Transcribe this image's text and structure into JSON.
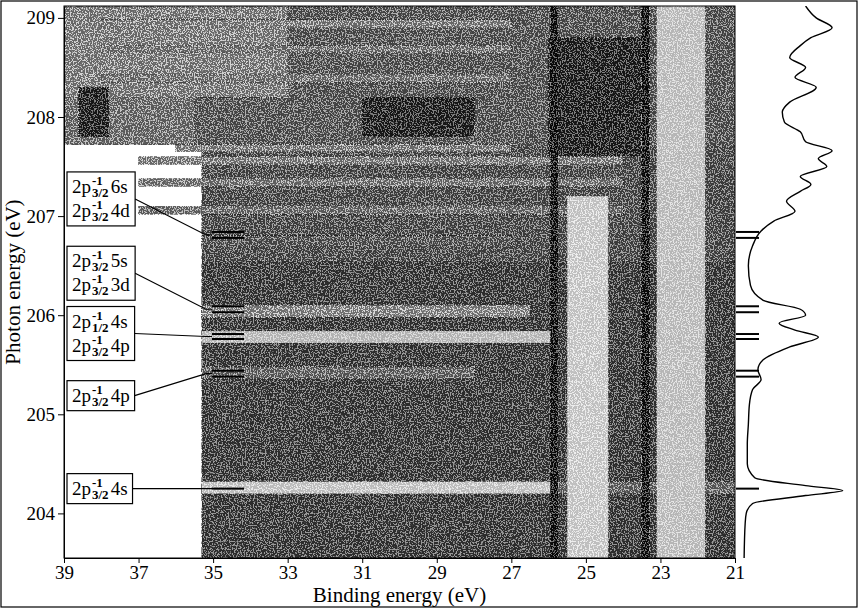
{
  "chart_data": {
    "type": "heatmap",
    "xlabel": "Binding energy (eV)",
    "ylabel": "Photon energy (eV)",
    "xlim": [
      39,
      21
    ],
    "xticks": [
      39,
      37,
      35,
      33,
      31,
      29,
      27,
      25,
      23,
      21
    ],
    "ylim": [
      203.55,
      209.12
    ],
    "yticks": [
      204,
      205,
      206,
      207,
      208,
      209
    ],
    "cells": [
      {
        "x": [
          35.3,
          21
        ],
        "y": [
          203.55,
          206.55
        ],
        "value": 0.3
      },
      {
        "x": [
          35.3,
          21
        ],
        "y": [
          206.55,
          207.72
        ],
        "value": 0.4
      },
      {
        "x": [
          39,
          21
        ],
        "y": [
          207.72,
          209.12
        ],
        "value": 0.45
      },
      {
        "x": [
          39,
          33
        ],
        "y": [
          208.2,
          209.12
        ],
        "value": 0.7
      },
      {
        "x": [
          39,
          35.5
        ],
        "y": [
          207.72,
          208.2
        ],
        "value": 0.6
      },
      {
        "x": [
          38.6,
          37.8
        ],
        "y": [
          207.8,
          208.3
        ],
        "value": 0.15
      },
      {
        "x": [
          31,
          28
        ],
        "y": [
          207.8,
          208.2
        ],
        "value": 0.15
      },
      {
        "x": [
          26,
          23.5
        ],
        "y": [
          207.6,
          208.8
        ],
        "value": 0.15
      },
      {
        "x": [
          35.3,
          25.9
        ],
        "y": [
          204.2,
          204.32
        ],
        "value": 0.9
      },
      {
        "x": [
          25.9,
          21
        ],
        "y": [
          204.2,
          204.32
        ],
        "value": 0.55
      },
      {
        "x": [
          35.3,
          28
        ],
        "y": [
          205.36,
          205.48
        ],
        "value": 0.55
      },
      {
        "x": [
          35.3,
          25.8
        ],
        "y": [
          205.72,
          205.84
        ],
        "value": 0.85
      },
      {
        "x": [
          35.3,
          26.5
        ],
        "y": [
          205.98,
          206.1
        ],
        "value": 0.75
      },
      {
        "x": [
          35.3,
          27
        ],
        "y": [
          206.7,
          206.8
        ],
        "value": 0.45
      },
      {
        "x": [
          37,
          24
        ],
        "y": [
          207.02,
          207.1
        ],
        "value": 0.6
      },
      {
        "x": [
          37,
          24
        ],
        "y": [
          207.3,
          207.38
        ],
        "value": 0.65
      },
      {
        "x": [
          37,
          24
        ],
        "y": [
          207.52,
          207.6
        ],
        "value": 0.7
      },
      {
        "x": [
          36,
          27
        ],
        "y": [
          207.65,
          207.72
        ],
        "value": 0.7
      },
      {
        "x": [
          38,
          27
        ],
        "y": [
          208.35,
          208.43
        ],
        "value": 0.65
      },
      {
        "x": [
          38,
          27
        ],
        "y": [
          208.65,
          208.72
        ],
        "value": 0.65
      },
      {
        "x": [
          38,
          27
        ],
        "y": [
          208.9,
          208.98
        ],
        "value": 0.7
      },
      {
        "x": [
          25.95,
          25.75
        ],
        "y": [
          203.55,
          209.12
        ],
        "value": 0.05
      },
      {
        "x": [
          25.5,
          24.4
        ],
        "y": [
          203.55,
          207.2
        ],
        "value": 0.92
      },
      {
        "x": [
          23.5,
          23.3
        ],
        "y": [
          203.55,
          209.12
        ],
        "value": 0.05
      },
      {
        "x": [
          23.1,
          21.8
        ],
        "y": [
          203.55,
          209.12
        ],
        "value": 0.88
      }
    ],
    "spectrum": {
      "xlim": [
        0,
        1
      ],
      "y": [
        203.55,
        203.9,
        204.0,
        204.1,
        204.18,
        204.23,
        204.28,
        204.36,
        204.5,
        204.7,
        204.9,
        205.1,
        205.25,
        205.35,
        205.45,
        205.55,
        205.68,
        205.78,
        205.85,
        205.92,
        206.0,
        206.06,
        206.15,
        206.3,
        206.5,
        206.7,
        206.85,
        206.95,
        207.05,
        207.15,
        207.25,
        207.32,
        207.4,
        207.5,
        207.58,
        207.66,
        207.75,
        207.85,
        207.95,
        208.05,
        208.15,
        208.3,
        208.4,
        208.5,
        208.6,
        208.72,
        208.8,
        208.9,
        209.0,
        209.12
      ],
      "values": [
        0.02,
        0.03,
        0.04,
        0.1,
        0.6,
        0.95,
        0.6,
        0.12,
        0.05,
        0.05,
        0.06,
        0.07,
        0.1,
        0.18,
        0.15,
        0.2,
        0.45,
        0.72,
        0.5,
        0.35,
        0.6,
        0.55,
        0.2,
        0.08,
        0.06,
        0.1,
        0.18,
        0.3,
        0.5,
        0.42,
        0.55,
        0.65,
        0.55,
        0.8,
        0.72,
        0.85,
        0.6,
        0.55,
        0.4,
        0.38,
        0.45,
        0.7,
        0.5,
        0.6,
        0.45,
        0.55,
        0.65,
        0.85,
        0.7,
        0.6
      ]
    },
    "resonances": [
      {
        "y": [
          206.84,
          206.78
        ],
        "labels": [
          {
            "hole": "2p",
            "power": "-1",
            "j": "3/2",
            "orbital": "6s"
          },
          {
            "hole": "2p",
            "power": "-1",
            "j": "3/2",
            "orbital": "4d"
          }
        ]
      },
      {
        "y": [
          206.09,
          206.03
        ],
        "labels": [
          {
            "hole": "2p",
            "power": "-1",
            "j": "3/2",
            "orbital": "5s"
          },
          {
            "hole": "2p",
            "power": "-1",
            "j": "3/2",
            "orbital": "3d"
          }
        ]
      },
      {
        "y": [
          205.81,
          205.76
        ],
        "labels": [
          {
            "hole": "2p",
            "power": "-1",
            "j": "1/2",
            "orbital": "4s"
          },
          {
            "hole": "2p",
            "power": "-1",
            "j": "3/2",
            "orbital": "4p"
          }
        ]
      },
      {
        "y": [
          205.44,
          205.38
        ],
        "labels": [
          {
            "hole": "2p",
            "power": "-1",
            "j": "3/2",
            "orbital": "4p"
          }
        ]
      },
      {
        "y": [
          204.25
        ],
        "labels": [
          {
            "hole": "2p",
            "power": "-1",
            "j": "3/2",
            "orbital": "4s"
          }
        ]
      }
    ]
  }
}
